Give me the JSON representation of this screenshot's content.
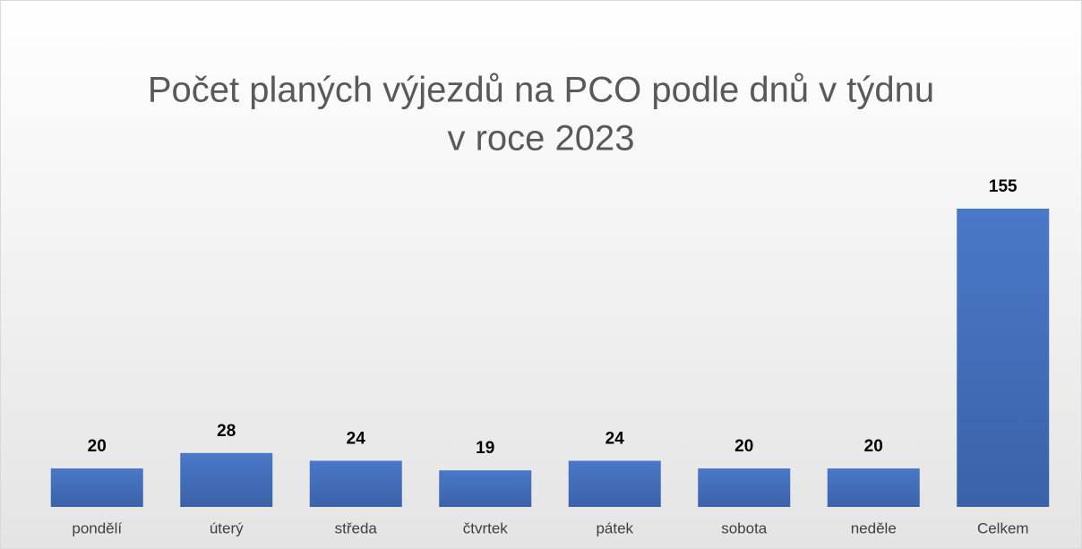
{
  "chart_data": {
    "type": "bar",
    "title": [
      "Počet planých výjezdů na PCO podle dnů v týdnu",
      "v roce 2023"
    ],
    "categories": [
      "pondělí",
      "úterý",
      "středa",
      "čtvrtek",
      "pátek",
      "sobota",
      "neděle",
      "Celkem"
    ],
    "values": [
      20,
      28,
      24,
      19,
      24,
      20,
      20,
      155
    ],
    "color": "#4472c4"
  }
}
